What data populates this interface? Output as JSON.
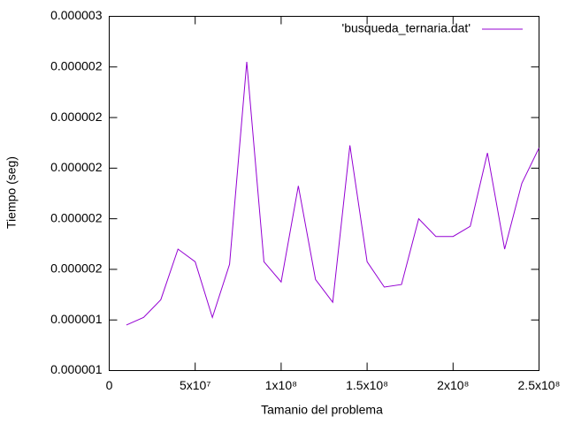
{
  "chart_data": {
    "type": "line",
    "xlabel": "Tamanio del problema",
    "ylabel": "Tiempo (seg)",
    "x": [
      10000000,
      20000000,
      30000000,
      40000000,
      50000000,
      60000000,
      70000000,
      80000000,
      90000000,
      100000000,
      110000000,
      120000000,
      130000000,
      140000000,
      150000000,
      160000000,
      170000000,
      180000000,
      190000000,
      200000000,
      210000000,
      220000000,
      230000000,
      240000000,
      250000000
    ],
    "series": [
      {
        "name": "'busqueda_ternaria.dat'",
        "color": "#9400d3",
        "values": [
          1.38e-06,
          1.41e-06,
          1.48e-06,
          1.68e-06,
          1.63e-06,
          1.41e-06,
          1.62e-06,
          2.42e-06,
          1.63e-06,
          1.55e-06,
          1.93e-06,
          1.56e-06,
          1.47e-06,
          2.09e-06,
          1.63e-06,
          1.53e-06,
          1.54e-06,
          1.8e-06,
          1.73e-06,
          1.73e-06,
          1.77e-06,
          2.06e-06,
          1.68e-06,
          1.94e-06,
          2.08e-06
        ]
      }
    ],
    "xlim": [
      0,
      250000000
    ],
    "xticks": [
      0,
      {
        "value": 50000000,
        "label": "5x10⁷"
      },
      {
        "value": 100000000,
        "label": "1x10⁸"
      },
      {
        "value": 150000000,
        "label": "1.5x10⁸"
      },
      {
        "value": 200000000,
        "label": "2x10⁸"
      },
      {
        "value": 250000000,
        "label": "2.5x10⁸"
      }
    ],
    "ylim": [
      1.2e-06,
      2.6e-06
    ],
    "yticks": [
      {
        "value": 1.2e-06,
        "label": "0.000001"
      },
      {
        "value": 1.4e-06,
        "label": "0.000001"
      },
      {
        "value": 1.6e-06,
        "label": "0.000002"
      },
      {
        "value": 1.8e-06,
        "label": "0.000002"
      },
      {
        "value": 2e-06,
        "label": "0.000002"
      },
      {
        "value": 2.2e-06,
        "label": "0.000002"
      },
      {
        "value": 2.4e-06,
        "label": "0.000002"
      },
      {
        "value": 2.6e-06,
        "label": "0.000003"
      }
    ],
    "legend": "top-right"
  }
}
